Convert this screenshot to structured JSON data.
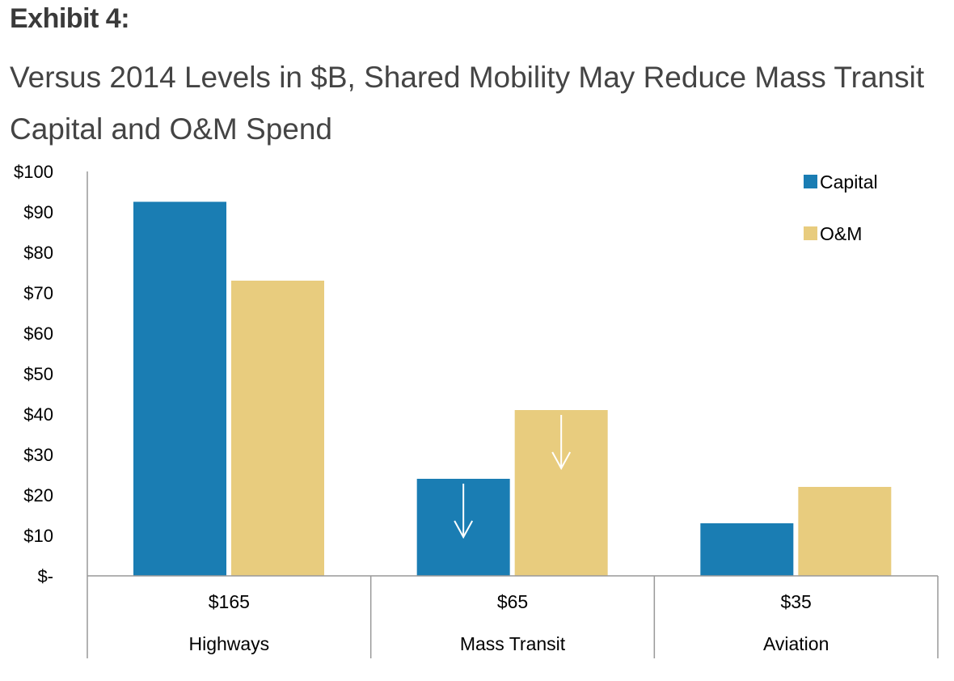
{
  "header": {
    "exhibit": "Exhibit 4:",
    "title": "Versus 2014 Levels in $B, Shared Mobility May Reduce Mass Transit Capital and O&M Spend"
  },
  "colors": {
    "capital": "#1a7db3",
    "om": "#e8cc7e",
    "arrow": "#ffffff"
  },
  "chart_data": {
    "type": "bar",
    "categories": [
      "Highways",
      "Mass Transit",
      "Aviation"
    ],
    "category_totals": [
      "$165",
      "$65",
      "$35"
    ],
    "series": [
      {
        "name": "Capital",
        "values": [
          92.5,
          24,
          13
        ]
      },
      {
        "name": "O&M",
        "values": [
          73,
          41,
          22
        ]
      }
    ],
    "ylim": [
      0,
      100
    ],
    "yticks": [
      0,
      10,
      20,
      30,
      40,
      50,
      60,
      70,
      80,
      90,
      100
    ],
    "ytick_labels": [
      "$-",
      "$10",
      "$20",
      "$30",
      "$40",
      "$50",
      "$60",
      "$70",
      "$80",
      "$90",
      "$100"
    ],
    "legend_position": "top-right",
    "grid": false,
    "annotations": [
      {
        "type": "down-arrow",
        "category": "Mass Transit",
        "series": "Capital"
      },
      {
        "type": "down-arrow",
        "category": "Mass Transit",
        "series": "O&M"
      }
    ]
  }
}
